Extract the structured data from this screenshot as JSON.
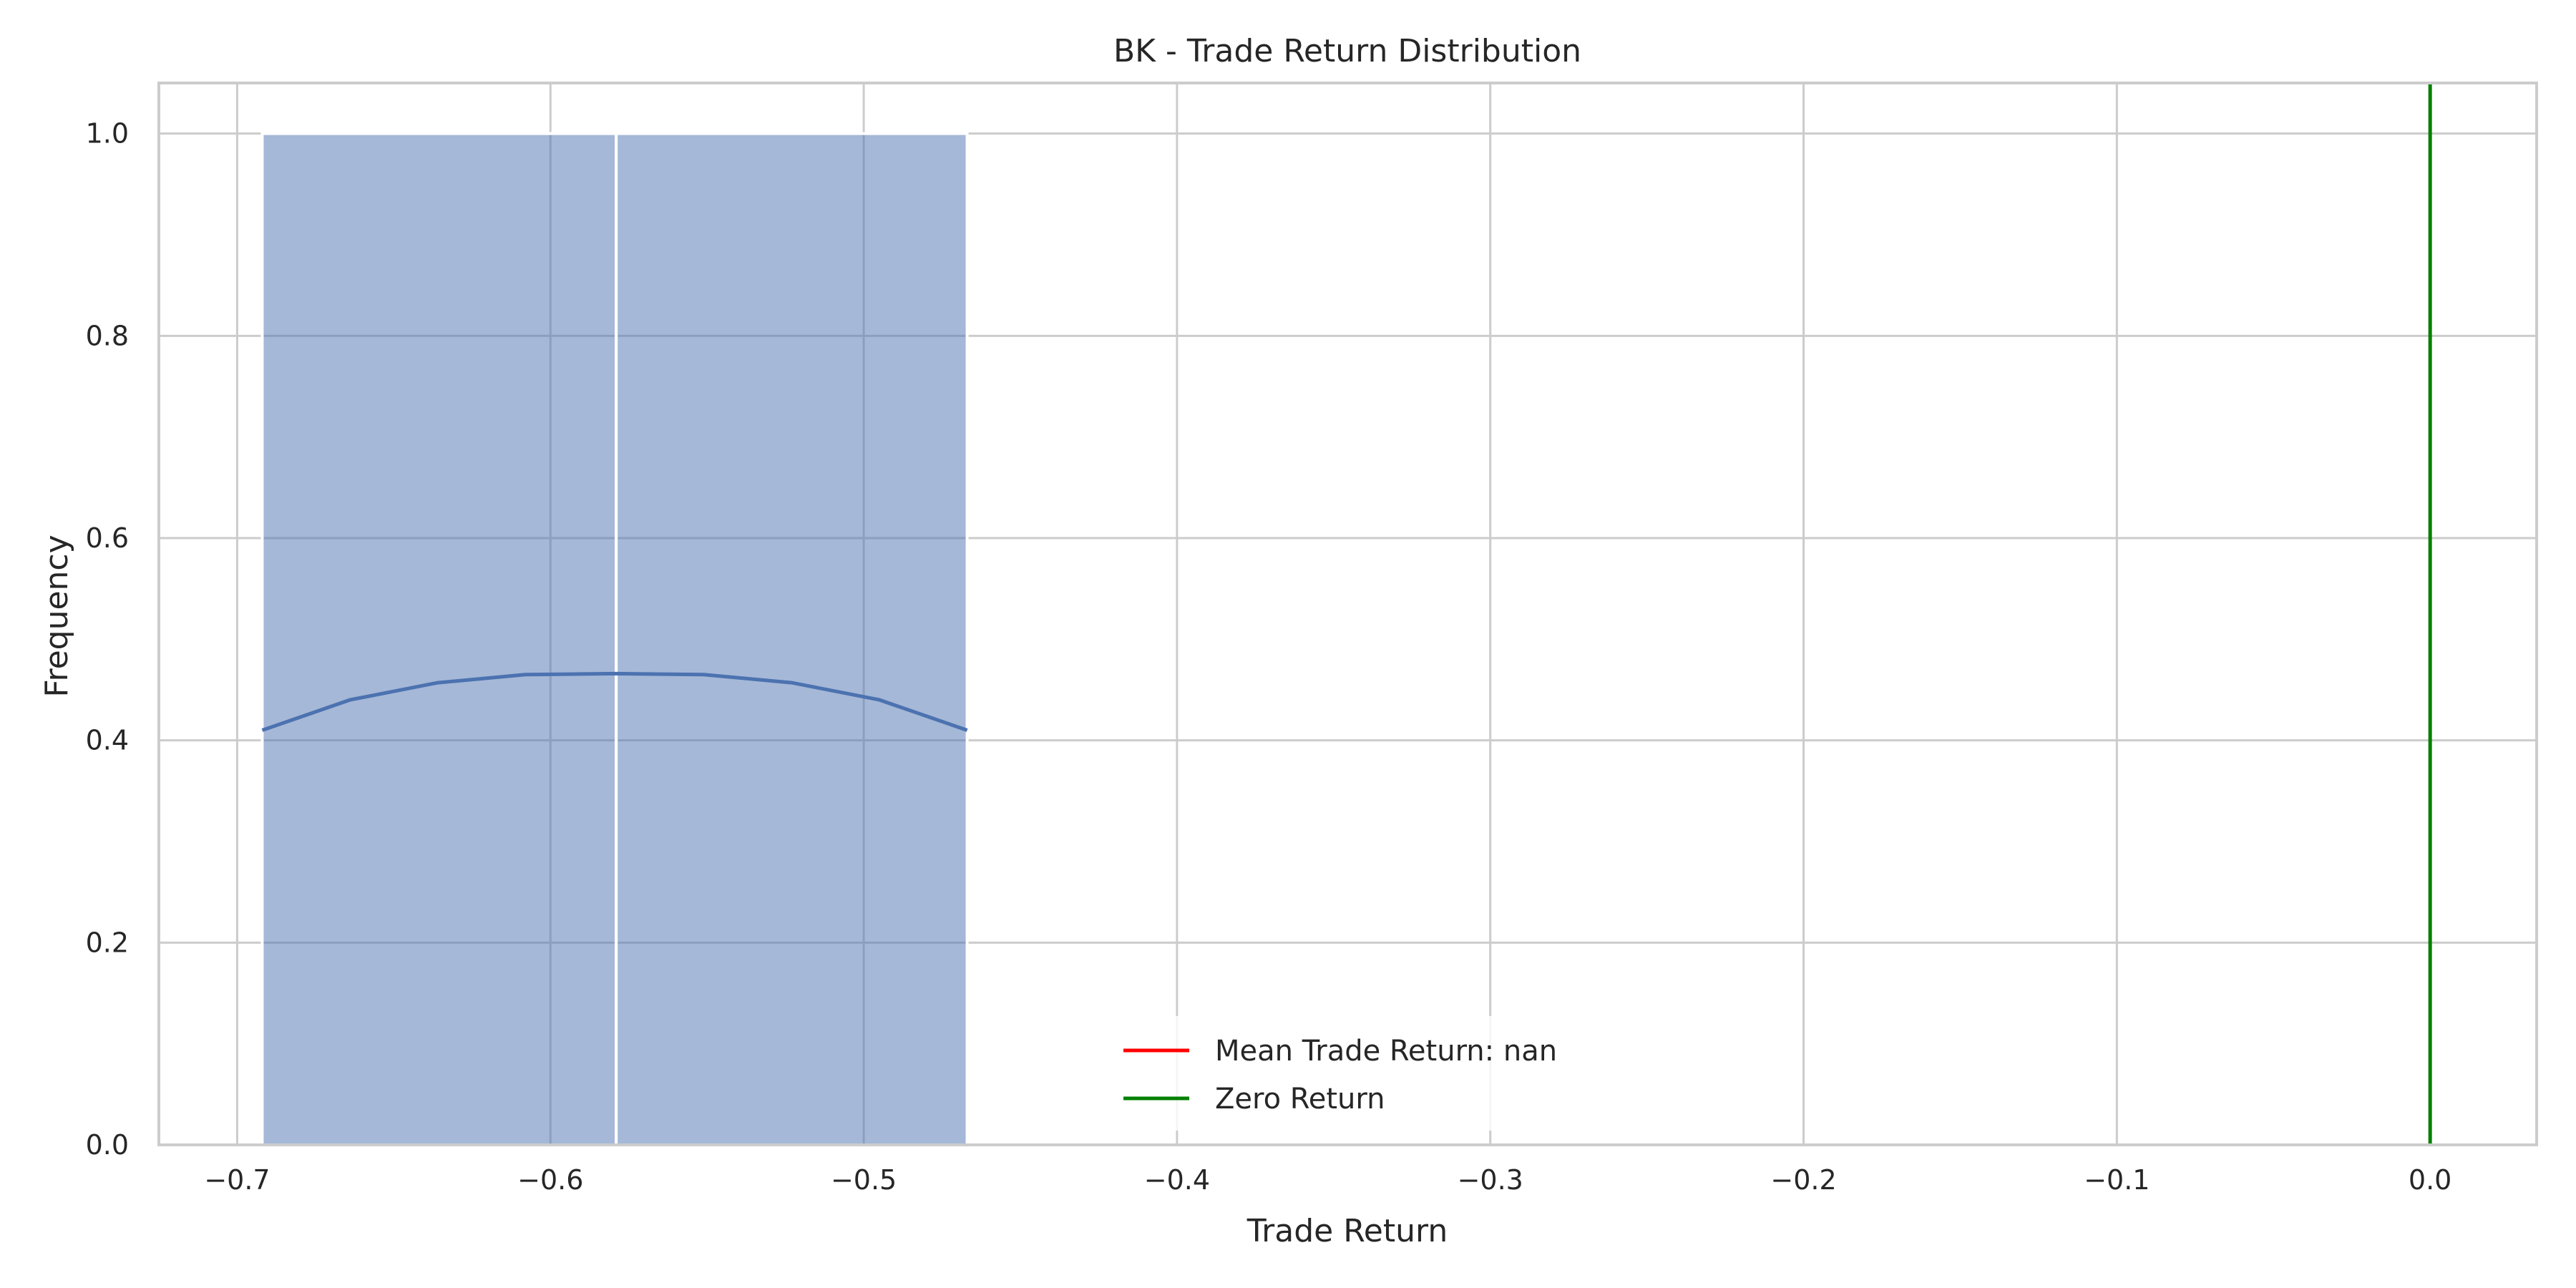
{
  "chart_data": {
    "type": "histogram",
    "title": "BK - Trade Return Distribution",
    "xlabel": "Trade Return",
    "ylabel": "Frequency",
    "xlim": [
      -0.725,
      0.034
    ],
    "ylim": [
      0,
      1.05
    ],
    "xticks": [
      -0.7,
      -0.6,
      -0.5,
      -0.4,
      -0.3,
      -0.2,
      -0.1,
      0.0
    ],
    "xtick_labels": [
      "−0.7",
      "−0.6",
      "−0.5",
      "−0.4",
      "−0.3",
      "−0.2",
      "−0.1",
      "0.0"
    ],
    "yticks": [
      0.0,
      0.2,
      0.4,
      0.6,
      0.8,
      1.0
    ],
    "ytick_labels": [
      "0.0",
      "0.2",
      "0.4",
      "0.6",
      "0.8",
      "1.0"
    ],
    "grid": true,
    "bins": [
      {
        "x0": -0.692,
        "x1": -0.579,
        "count": 1
      },
      {
        "x0": -0.579,
        "x1": -0.467,
        "count": 1
      }
    ],
    "bar_color": "#4c72b0",
    "kde": {
      "color": "#4c72b0",
      "x": [
        -0.692,
        -0.664,
        -0.636,
        -0.608,
        -0.579,
        -0.551,
        -0.523,
        -0.495,
        -0.467
      ],
      "y": [
        0.41,
        0.44,
        0.457,
        0.465,
        0.466,
        0.465,
        0.457,
        0.44,
        0.41
      ]
    },
    "vlines": [
      {
        "x": 0.0,
        "color": "#008000",
        "label": "Zero Return"
      }
    ],
    "legend": {
      "placement": "lower-center",
      "entries": [
        {
          "label": "Mean Trade Return: nan",
          "color": "#ff0000"
        },
        {
          "label": "Zero Return",
          "color": "#008000"
        }
      ]
    }
  }
}
